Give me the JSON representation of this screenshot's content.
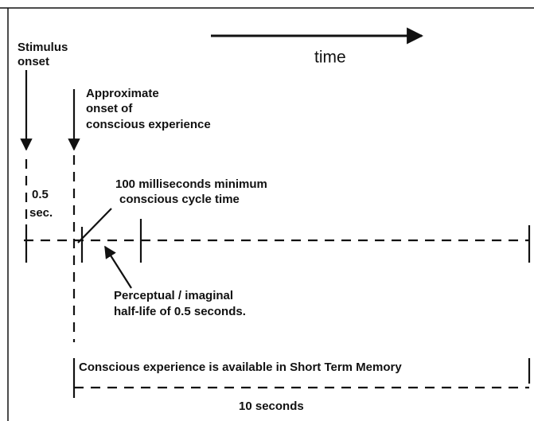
{
  "stimulus_onset": [
    "Stimulus",
    "onset"
  ],
  "time_label": "time",
  "conscious_onset": [
    "Approximate",
    "onset of",
    "conscious experience"
  ],
  "interval": [
    "0.5",
    "sec."
  ],
  "cycle_time": [
    "100 milliseconds minimum",
    "conscious cycle time"
  ],
  "half_life": [
    "Perceptual / imaginal",
    "half-life of 0.5 seconds."
  ],
  "memory": "Conscious experience is available in Short Term Memory",
  "duration": "10 seconds"
}
